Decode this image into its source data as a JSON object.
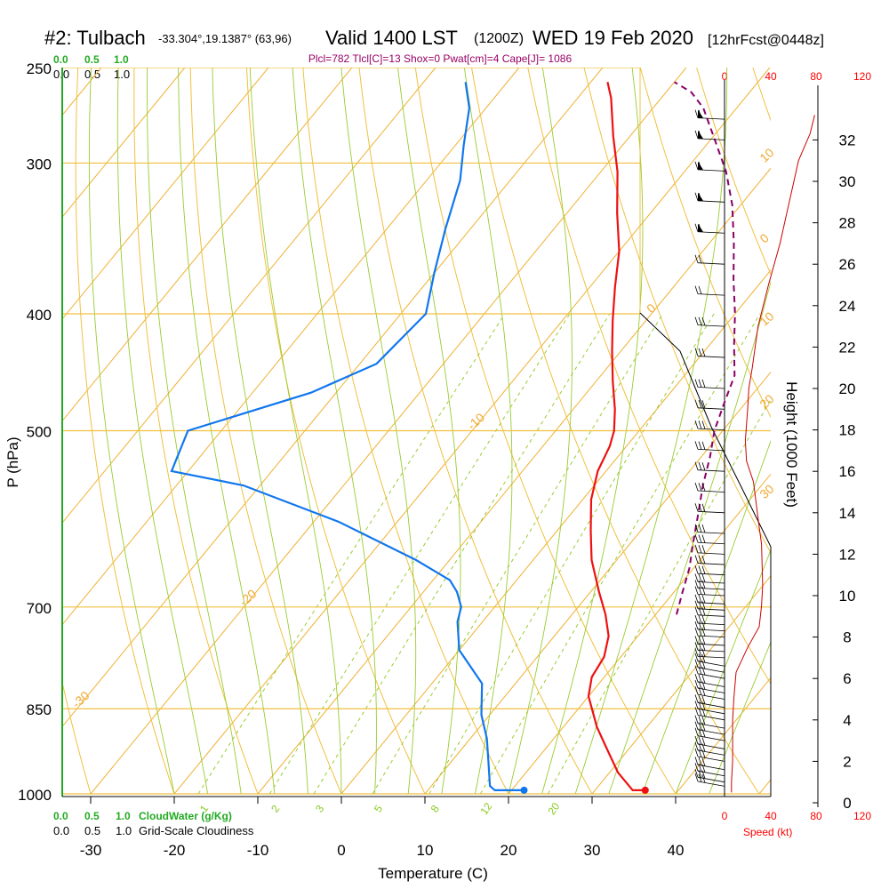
{
  "header": {
    "station": "#2: Tulbach",
    "coords": "-33.304°,19.1387° (63,96)",
    "valid": "Valid 1400 LST",
    "zulu": "(1200Z)",
    "date": "WED 19 Feb 2020",
    "forecast": "[12hrFcst@0448z]"
  },
  "indices": "Plcl=782 Tlcl[C]=13 Shox=0 Pwat[cm]=4 Cape[J]= 1086",
  "cloud_scale_top": {
    "green": [
      "0.0",
      "0.5",
      "1.0"
    ],
    "black": [
      "0.0",
      "0.5",
      "1.0"
    ]
  },
  "cloud_scale_bottom": {
    "green": [
      "0.0",
      "0.5",
      "1.0"
    ],
    "green_label": "CloudWater (g/Kg)",
    "black": [
      "0.0",
      "0.5",
      "1.0"
    ],
    "black_label": "Grid-Scale Cloudiness"
  },
  "speed_scale": {
    "top": [
      "0",
      "40",
      "80",
      "120"
    ],
    "bottom": [
      "0",
      "40",
      "80",
      "120"
    ],
    "label": "Speed (kt)"
  },
  "colors": {
    "isobar": "#f0c040",
    "isotherm": "#f0b030",
    "dry_adiabat": "#f0c040",
    "moist_adiabat": "#99cc33",
    "mixing_ratio": "#99cc33",
    "temperature": "#ee1111",
    "dewpoint": "#1177ee",
    "parcel": "#880066",
    "cloud_axis": "#22aa22",
    "speed": "#cc0000"
  },
  "chart_data": {
    "type": "line",
    "title": "#2: Tulbach Valid 1400 LST (1200Z) WED 19 Feb 2020",
    "xlabel": "Temperature (C)",
    "ylabel": "P (hPa)",
    "y2label": "Height (1000 Feet)",
    "y_scale": "log",
    "xlim": [
      -34,
      51
    ],
    "ylim": [
      1000,
      250
    ],
    "x_ticks": [
      -30,
      -20,
      -10,
      0,
      10,
      20,
      30,
      40
    ],
    "p_ticks": [
      250,
      300,
      400,
      500,
      700,
      850,
      1000
    ],
    "height_ticks": [
      0,
      2,
      4,
      6,
      8,
      10,
      12,
      14,
      16,
      18,
      20,
      22,
      24,
      26,
      28,
      30,
      32
    ],
    "isotherm_labels": [
      {
        "text": "10",
        "t": 0,
        "p": 300
      },
      {
        "text": "0",
        "t": -10,
        "p": 400
      },
      {
        "text": "-10",
        "t": -20,
        "p": 500
      },
      {
        "text": "-20",
        "t": -30,
        "p": 700
      },
      {
        "text": "-30",
        "t": -40,
        "p": 850
      },
      {
        "text": "0",
        "t": 0,
        "p": 350
      },
      {
        "text": "10",
        "t": 10,
        "p": 410
      },
      {
        "text": "20",
        "t": 20,
        "p": 480
      },
      {
        "text": "30",
        "t": 30,
        "p": 570
      }
    ],
    "mixing_ratio_labels": [
      "1",
      "2",
      "3",
      "5",
      "8",
      "12",
      "20"
    ],
    "series": [
      {
        "name": "Temperature",
        "points": [
          [
            36,
            993
          ],
          [
            34.5,
            993
          ],
          [
            31,
            960
          ],
          [
            28,
            925
          ],
          [
            24,
            880
          ],
          [
            20,
            830
          ],
          [
            18.5,
            800
          ],
          [
            18,
            770
          ],
          [
            16.5,
            740
          ],
          [
            14,
            710
          ],
          [
            11,
            680
          ],
          [
            7,
            640
          ],
          [
            4,
            605
          ],
          [
            1,
            570
          ],
          [
            -1,
            540
          ],
          [
            -2,
            515
          ],
          [
            -3,
            500
          ],
          [
            -5,
            480
          ],
          [
            -8,
            455
          ],
          [
            -11,
            430
          ],
          [
            -14,
            405
          ],
          [
            -17,
            380
          ],
          [
            -20,
            355
          ],
          [
            -24,
            330
          ],
          [
            -28,
            305
          ],
          [
            -32,
            285
          ],
          [
            -36,
            265
          ],
          [
            -38,
            257
          ]
        ]
      },
      {
        "name": "Dewpoint",
        "points": [
          [
            21.5,
            993
          ],
          [
            18,
            993
          ],
          [
            17,
            985
          ],
          [
            15,
            950
          ],
          [
            12,
            900
          ],
          [
            9,
            860
          ],
          [
            6,
            810
          ],
          [
            0,
            760
          ],
          [
            -3,
            720
          ],
          [
            -4,
            700
          ],
          [
            -6,
            680
          ],
          [
            -8,
            665
          ],
          [
            -14,
            640
          ],
          [
            -27,
            595
          ],
          [
            -42,
            555
          ],
          [
            -52,
            540
          ],
          [
            -54,
            500
          ],
          [
            -43,
            465
          ],
          [
            -38,
            440
          ],
          [
            -37,
            400
          ],
          [
            -40,
            370
          ],
          [
            -43,
            340
          ],
          [
            -46,
            310
          ],
          [
            -49,
            290
          ],
          [
            -52,
            270
          ],
          [
            -55,
            257
          ]
        ]
      },
      {
        "name": "Parcel",
        "points": [
          [
            22.5,
            710
          ],
          [
            21,
            680
          ],
          [
            19.5,
            650
          ],
          [
            17.5,
            620
          ],
          [
            15.5,
            590
          ],
          [
            13,
            555
          ],
          [
            11,
            525
          ],
          [
            9,
            500
          ],
          [
            7.5,
            475
          ],
          [
            6,
            450
          ],
          [
            3,
            425
          ],
          [
            0,
            400
          ],
          [
            -3.5,
            375
          ],
          [
            -7,
            350
          ],
          [
            -11,
            325
          ],
          [
            -15,
            305
          ],
          [
            -20,
            285
          ],
          [
            -24,
            270
          ],
          [
            -27,
            262
          ],
          [
            -30,
            257
          ]
        ]
      }
    ],
    "speed_profile": [
      [
        0.5,
        6
      ],
      [
        1.0,
        6
      ],
      [
        2.0,
        7
      ],
      [
        3.5,
        7
      ],
      [
        4,
        7
      ],
      [
        5,
        8
      ],
      [
        6.3,
        10
      ],
      [
        7.5,
        20
      ],
      [
        8.5,
        30
      ],
      [
        9.5,
        32
      ],
      [
        10.5,
        33
      ],
      [
        12.5,
        32
      ],
      [
        13.3,
        30
      ],
      [
        15.5,
        25
      ],
      [
        16.5,
        19
      ],
      [
        17.5,
        18
      ],
      [
        19,
        20
      ],
      [
        20,
        21
      ],
      [
        21,
        24
      ],
      [
        23,
        29
      ],
      [
        25,
        38
      ],
      [
        27,
        48
      ],
      [
        29,
        56
      ],
      [
        30,
        60
      ],
      [
        31,
        64
      ],
      [
        32.3,
        74
      ],
      [
        33.2,
        78
      ]
    ],
    "wind_barb_levels": [
      0.8,
      1.0,
      1.3,
      1.6,
      2.0,
      2.3,
      2.6,
      3.0,
      3.3,
      3.6,
      4.0,
      4.3,
      4.6,
      5.0,
      5.3,
      5.6,
      6.0,
      6.3,
      6.6,
      7.0,
      7.3,
      7.6,
      8.0,
      8.3,
      8.6,
      9.0,
      9.3,
      9.6,
      10.0,
      10.3,
      10.6,
      11.0,
      11.5,
      12.0,
      12.5,
      13.0,
      14.0,
      15.0,
      16.0,
      17.0,
      18.0,
      19.0,
      20.0,
      21.5,
      23.0,
      24.5,
      26.0,
      27.5,
      29.0,
      30.5,
      32.0,
      33.0
    ]
  }
}
